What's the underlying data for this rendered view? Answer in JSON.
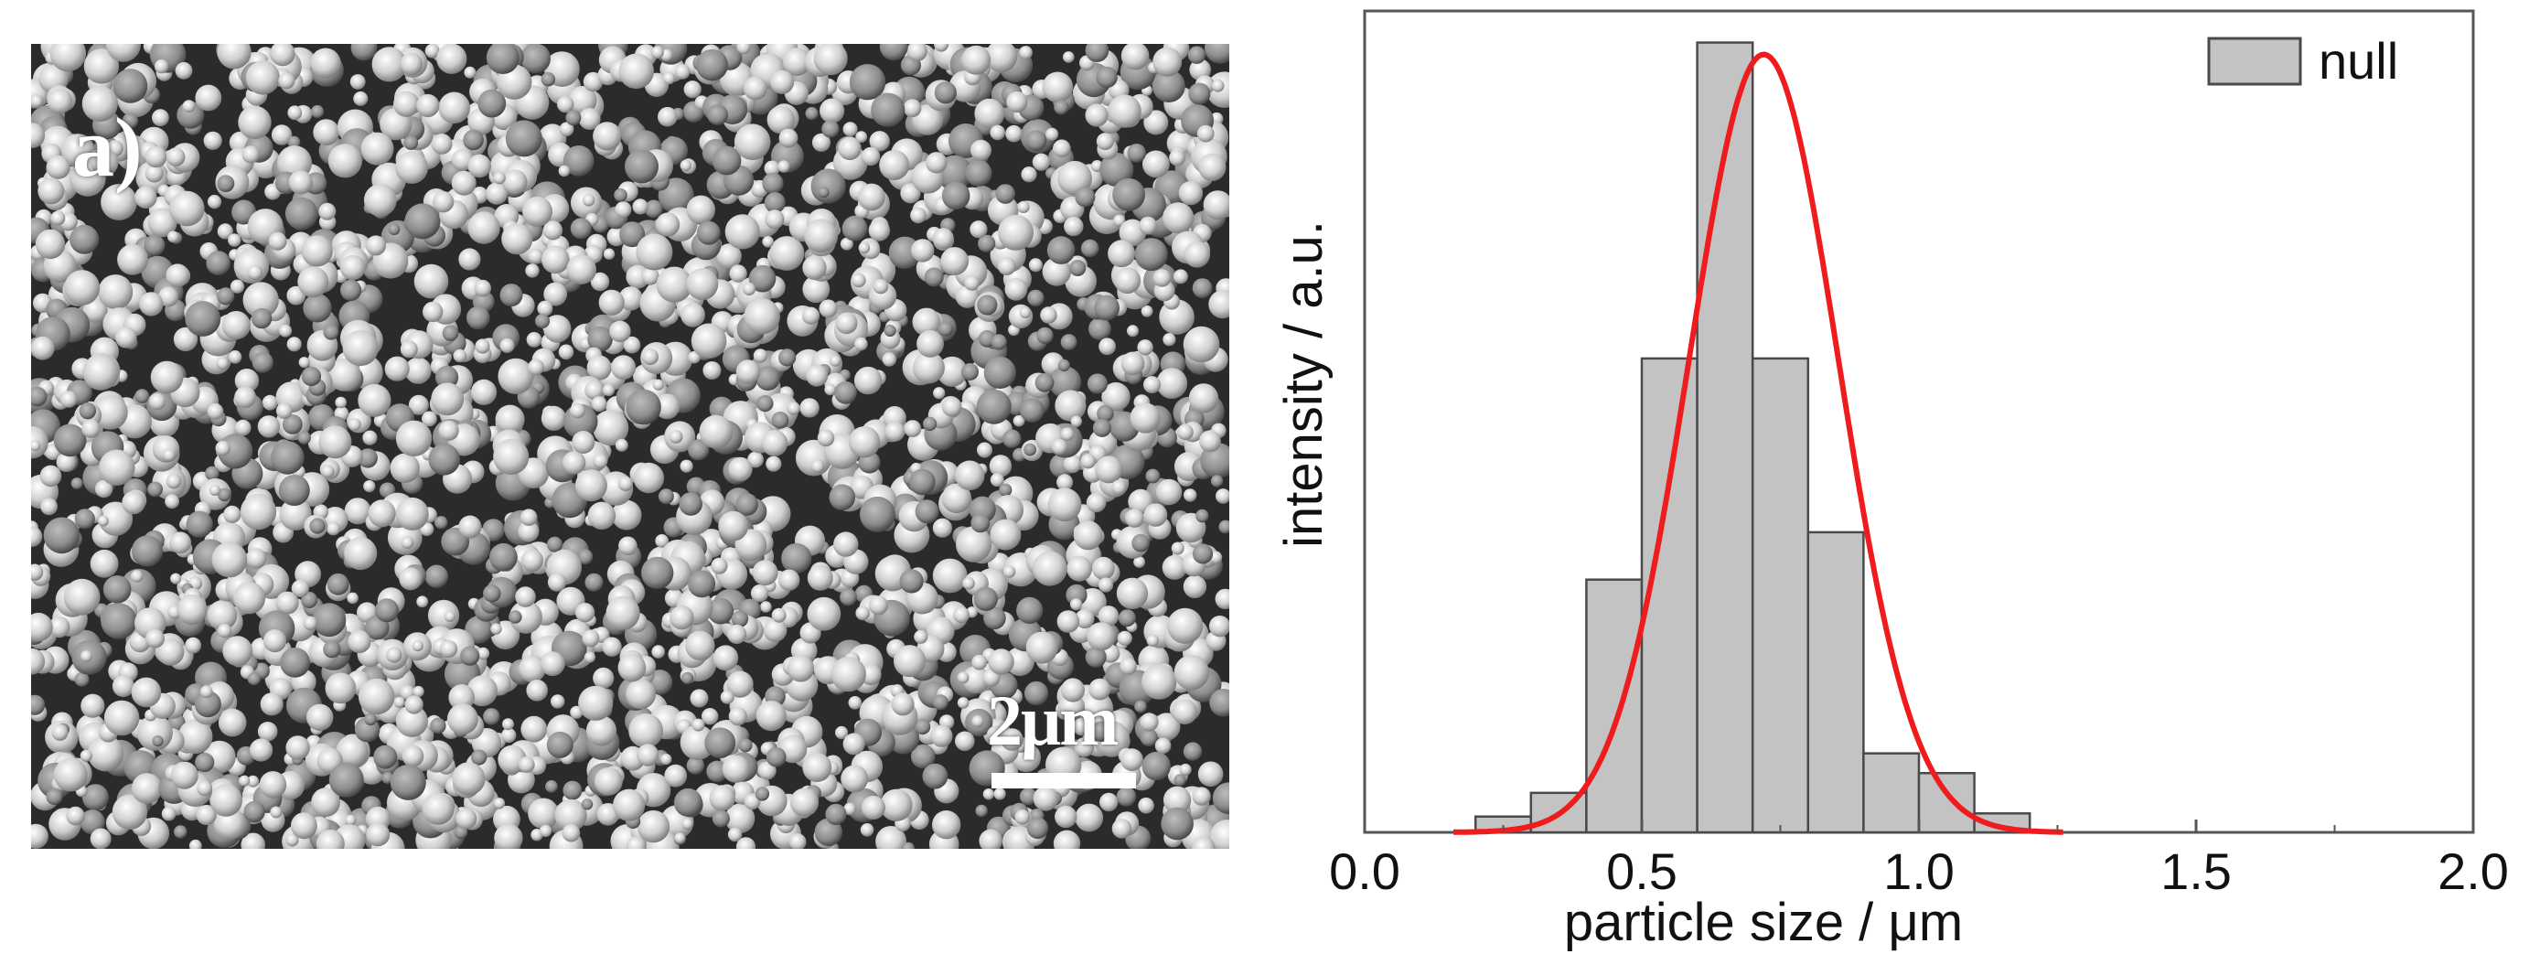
{
  "sem": {
    "panel_label": "a)",
    "scale_label": "2μm"
  },
  "chart_data": {
    "type": "bar",
    "bin_width": 0.1,
    "bin_starts": [
      0.2,
      0.3,
      0.4,
      0.5,
      0.6,
      0.7,
      0.8,
      0.9,
      1.0,
      1.1,
      1.2
    ],
    "values": [
      0.02,
      0.05,
      0.32,
      0.6,
      1.0,
      0.6,
      0.38,
      0.1,
      0.075,
      0.024,
      0.0
    ],
    "fit": {
      "type": "gaussian",
      "mean": 0.72,
      "sigma": 0.135,
      "peak": 0.985,
      "x_range": [
        0.16,
        1.26
      ],
      "color": "#ee1c1c"
    },
    "bar_color": "#c3c3c3",
    "bar_edge_color": "#4a4a4a",
    "xlabel": "particle size / μm",
    "ylabel": "intensity / a.u.",
    "xlim": [
      0.0,
      2.0
    ],
    "ylim": [
      0,
      1.04
    ],
    "x_ticks": [
      "0.0",
      "0.5",
      "1.0",
      "1.5",
      "2.0"
    ],
    "x_tick_values": [
      0.0,
      0.5,
      1.0,
      1.5,
      2.0
    ],
    "legend": {
      "entries": [
        "null"
      ],
      "position": "top-right"
    }
  }
}
